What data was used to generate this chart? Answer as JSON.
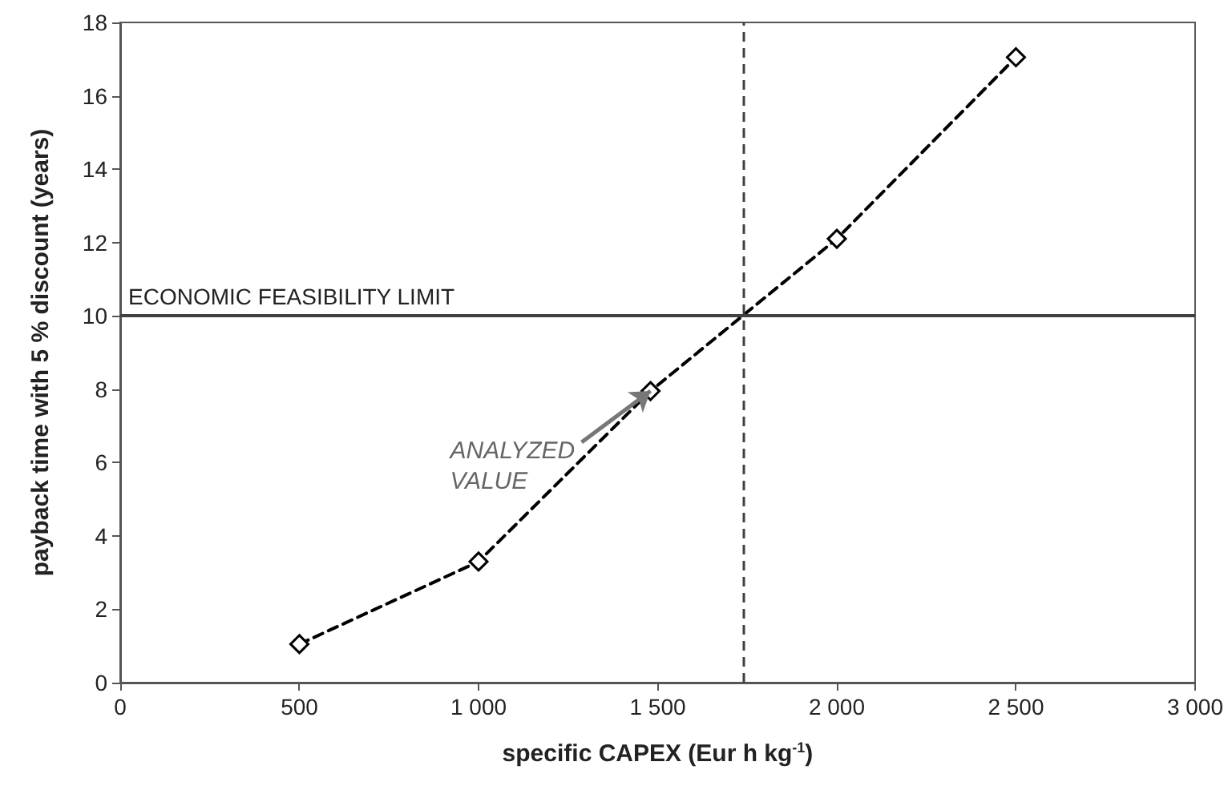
{
  "chart_data": {
    "type": "line",
    "xlabel": "specific CAPEX (Eur h kg$^{-1}$)",
    "ylabel": "payback time with 5 % discount (years)",
    "x": [
      500,
      1000,
      1480,
      2000,
      2500
    ],
    "series": [
      {
        "color": "#000000",
        "values": [
          1.05,
          3.3,
          7.95,
          12.1,
          17.05
        ]
      }
    ],
    "marker": "diamond",
    "line_style": "dashed",
    "xlim": [
      0,
      3000
    ],
    "xticks": [
      0,
      500,
      {
        "value": 1000,
        "label": "1 000"
      },
      {
        "value": 1500,
        "label": "1 500"
      },
      {
        "value": 2000,
        "label": "2 000"
      },
      {
        "value": 2500,
        "label": "2 500"
      },
      {
        "value": 3000,
        "label": "3 000"
      }
    ],
    "ylim": [
      0,
      18
    ],
    "yticks": [
      0,
      2,
      4,
      6,
      8,
      10,
      12,
      14,
      16,
      18
    ],
    "grid": false,
    "ref_lines": [
      {
        "axis": "y",
        "value": 10,
        "label": "ECONOMIC FEASIBILITY LIMIT",
        "color": "#404040",
        "line_style": "solid"
      },
      {
        "axis": "x",
        "value": 1740,
        "label": null,
        "color": "#404040",
        "line_style": "dashed"
      }
    ],
    "annotations": [
      {
        "text": "ANALYZED VALUE",
        "x": 1480,
        "y": 7.95
      }
    ]
  }
}
